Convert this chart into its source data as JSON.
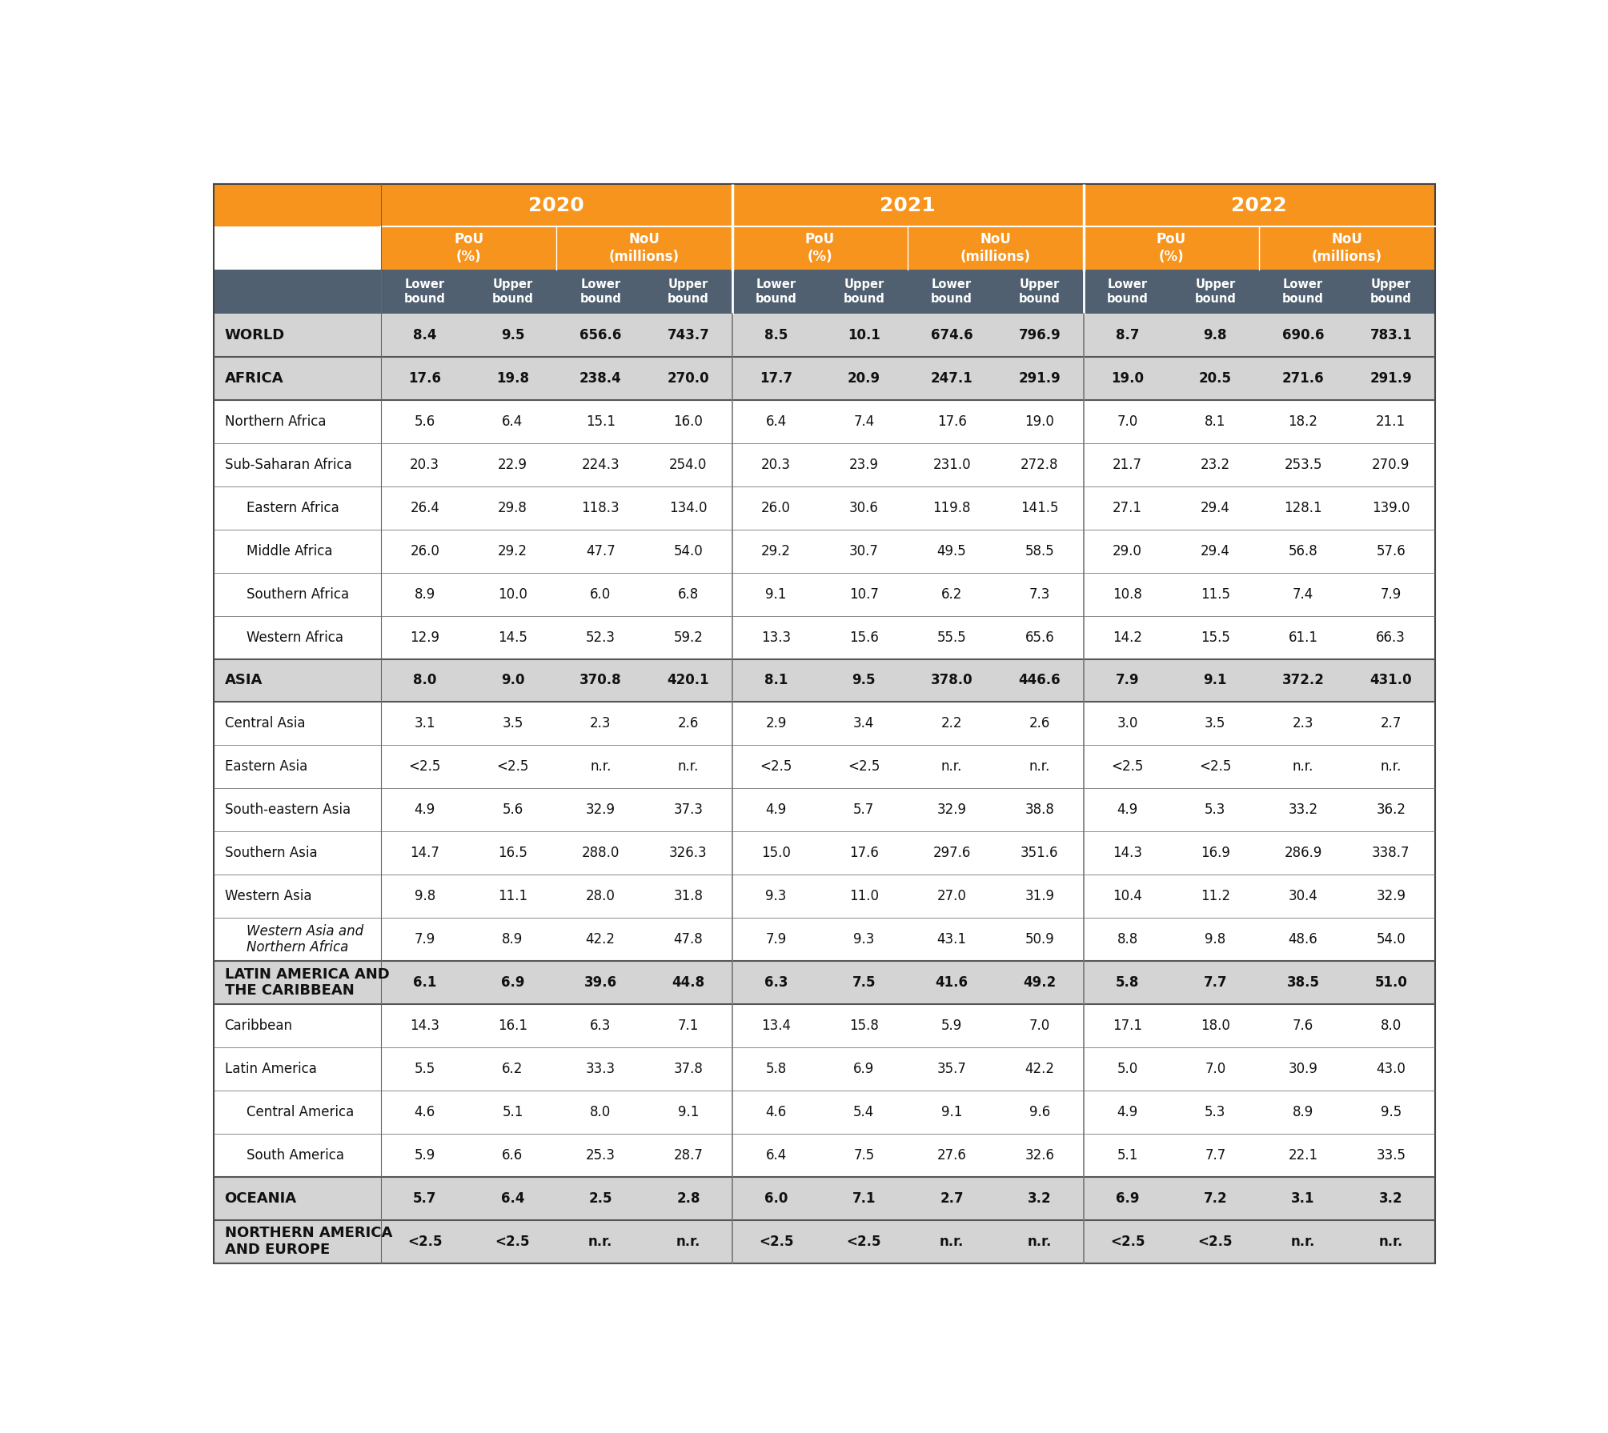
{
  "rows": [
    {
      "label": "WORLD",
      "bold": true,
      "indent": 0,
      "italic": false,
      "bg": "#d4d4d4",
      "values": [
        "8.4",
        "9.5",
        "656.6",
        "743.7",
        "8.5",
        "10.1",
        "674.6",
        "796.9",
        "8.7",
        "9.8",
        "690.6",
        "783.1"
      ]
    },
    {
      "label": "AFRICA",
      "bold": true,
      "indent": 0,
      "italic": false,
      "bg": "#d4d4d4",
      "values": [
        "17.6",
        "19.8",
        "238.4",
        "270.0",
        "17.7",
        "20.9",
        "247.1",
        "291.9",
        "19.0",
        "20.5",
        "271.6",
        "291.9"
      ]
    },
    {
      "label": "Northern Africa",
      "bold": false,
      "indent": 0,
      "italic": false,
      "bg": "#ffffff",
      "values": [
        "5.6",
        "6.4",
        "15.1",
        "16.0",
        "6.4",
        "7.4",
        "17.6",
        "19.0",
        "7.0",
        "8.1",
        "18.2",
        "21.1"
      ]
    },
    {
      "label": "Sub-Saharan Africa",
      "bold": false,
      "indent": 0,
      "italic": false,
      "bg": "#ffffff",
      "values": [
        "20.3",
        "22.9",
        "224.3",
        "254.0",
        "20.3",
        "23.9",
        "231.0",
        "272.8",
        "21.7",
        "23.2",
        "253.5",
        "270.9"
      ]
    },
    {
      "label": "Eastern Africa",
      "bold": false,
      "indent": 1,
      "italic": false,
      "bg": "#ffffff",
      "values": [
        "26.4",
        "29.8",
        "118.3",
        "134.0",
        "26.0",
        "30.6",
        "119.8",
        "141.5",
        "27.1",
        "29.4",
        "128.1",
        "139.0"
      ]
    },
    {
      "label": "Middle Africa",
      "bold": false,
      "indent": 1,
      "italic": false,
      "bg": "#ffffff",
      "values": [
        "26.0",
        "29.2",
        "47.7",
        "54.0",
        "29.2",
        "30.7",
        "49.5",
        "58.5",
        "29.0",
        "29.4",
        "56.8",
        "57.6"
      ]
    },
    {
      "label": "Southern Africa",
      "bold": false,
      "indent": 1,
      "italic": false,
      "bg": "#ffffff",
      "values": [
        "8.9",
        "10.0",
        "6.0",
        "6.8",
        "9.1",
        "10.7",
        "6.2",
        "7.3",
        "10.8",
        "11.5",
        "7.4",
        "7.9"
      ]
    },
    {
      "label": "Western Africa",
      "bold": false,
      "indent": 1,
      "italic": false,
      "bg": "#ffffff",
      "values": [
        "12.9",
        "14.5",
        "52.3",
        "59.2",
        "13.3",
        "15.6",
        "55.5",
        "65.6",
        "14.2",
        "15.5",
        "61.1",
        "66.3"
      ]
    },
    {
      "label": "ASIA",
      "bold": true,
      "indent": 0,
      "italic": false,
      "bg": "#d4d4d4",
      "values": [
        "8.0",
        "9.0",
        "370.8",
        "420.1",
        "8.1",
        "9.5",
        "378.0",
        "446.6",
        "7.9",
        "9.1",
        "372.2",
        "431.0"
      ]
    },
    {
      "label": "Central Asia",
      "bold": false,
      "indent": 0,
      "italic": false,
      "bg": "#ffffff",
      "values": [
        "3.1",
        "3.5",
        "2.3",
        "2.6",
        "2.9",
        "3.4",
        "2.2",
        "2.6",
        "3.0",
        "3.5",
        "2.3",
        "2.7"
      ]
    },
    {
      "label": "Eastern Asia",
      "bold": false,
      "indent": 0,
      "italic": false,
      "bg": "#ffffff",
      "values": [
        "<2.5",
        "<2.5",
        "n.r.",
        "n.r.",
        "<2.5",
        "<2.5",
        "n.r.",
        "n.r.",
        "<2.5",
        "<2.5",
        "n.r.",
        "n.r."
      ]
    },
    {
      "label": "South-eastern Asia",
      "bold": false,
      "indent": 0,
      "italic": false,
      "bg": "#ffffff",
      "values": [
        "4.9",
        "5.6",
        "32.9",
        "37.3",
        "4.9",
        "5.7",
        "32.9",
        "38.8",
        "4.9",
        "5.3",
        "33.2",
        "36.2"
      ]
    },
    {
      "label": "Southern Asia",
      "bold": false,
      "indent": 0,
      "italic": false,
      "bg": "#ffffff",
      "values": [
        "14.7",
        "16.5",
        "288.0",
        "326.3",
        "15.0",
        "17.6",
        "297.6",
        "351.6",
        "14.3",
        "16.9",
        "286.9",
        "338.7"
      ]
    },
    {
      "label": "Western Asia",
      "bold": false,
      "indent": 0,
      "italic": false,
      "bg": "#ffffff",
      "values": [
        "9.8",
        "11.1",
        "28.0",
        "31.8",
        "9.3",
        "11.0",
        "27.0",
        "31.9",
        "10.4",
        "11.2",
        "30.4",
        "32.9"
      ]
    },
    {
      "label": "Western Asia and\nNorthern Africa",
      "bold": false,
      "indent": 1,
      "italic": true,
      "bg": "#ffffff",
      "values": [
        "7.9",
        "8.9",
        "42.2",
        "47.8",
        "7.9",
        "9.3",
        "43.1",
        "50.9",
        "8.8",
        "9.8",
        "48.6",
        "54.0"
      ]
    },
    {
      "label": "LATIN AMERICA AND\nTHE CARIBBEAN",
      "bold": true,
      "indent": 0,
      "italic": false,
      "bg": "#d4d4d4",
      "values": [
        "6.1",
        "6.9",
        "39.6",
        "44.8",
        "6.3",
        "7.5",
        "41.6",
        "49.2",
        "5.8",
        "7.7",
        "38.5",
        "51.0"
      ]
    },
    {
      "label": "Caribbean",
      "bold": false,
      "indent": 0,
      "italic": false,
      "bg": "#ffffff",
      "values": [
        "14.3",
        "16.1",
        "6.3",
        "7.1",
        "13.4",
        "15.8",
        "5.9",
        "7.0",
        "17.1",
        "18.0",
        "7.6",
        "8.0"
      ]
    },
    {
      "label": "Latin America",
      "bold": false,
      "indent": 0,
      "italic": false,
      "bg": "#ffffff",
      "values": [
        "5.5",
        "6.2",
        "33.3",
        "37.8",
        "5.8",
        "6.9",
        "35.7",
        "42.2",
        "5.0",
        "7.0",
        "30.9",
        "43.0"
      ]
    },
    {
      "label": "Central America",
      "bold": false,
      "indent": 1,
      "italic": false,
      "bg": "#ffffff",
      "values": [
        "4.6",
        "5.1",
        "8.0",
        "9.1",
        "4.6",
        "5.4",
        "9.1",
        "9.6",
        "4.9",
        "5.3",
        "8.9",
        "9.5"
      ]
    },
    {
      "label": "South America",
      "bold": false,
      "indent": 1,
      "italic": false,
      "bg": "#ffffff",
      "values": [
        "5.9",
        "6.6",
        "25.3",
        "28.7",
        "6.4",
        "7.5",
        "27.6",
        "32.6",
        "5.1",
        "7.7",
        "22.1",
        "33.5"
      ]
    },
    {
      "label": "OCEANIA",
      "bold": true,
      "indent": 0,
      "italic": false,
      "bg": "#d4d4d4",
      "values": [
        "5.7",
        "6.4",
        "2.5",
        "2.8",
        "6.0",
        "7.1",
        "2.7",
        "3.2",
        "6.9",
        "7.2",
        "3.1",
        "3.2"
      ]
    },
    {
      "label": "NORTHERN AMERICA\nAND EUROPE",
      "bold": true,
      "indent": 0,
      "italic": false,
      "bg": "#d4d4d4",
      "values": [
        "<2.5",
        "<2.5",
        "n.r.",
        "n.r.",
        "<2.5",
        "<2.5",
        "n.r.",
        "n.r.",
        "<2.5",
        "<2.5",
        "n.r.",
        "n.r."
      ]
    }
  ],
  "orange_color": "#F7941D",
  "dark_gray_header": "#506070",
  "light_gray_bg": "#d4d4d4",
  "white_bg": "#ffffff",
  "border_color": "#aaaaaa",
  "text_white": "#ffffff",
  "text_black": "#111111"
}
